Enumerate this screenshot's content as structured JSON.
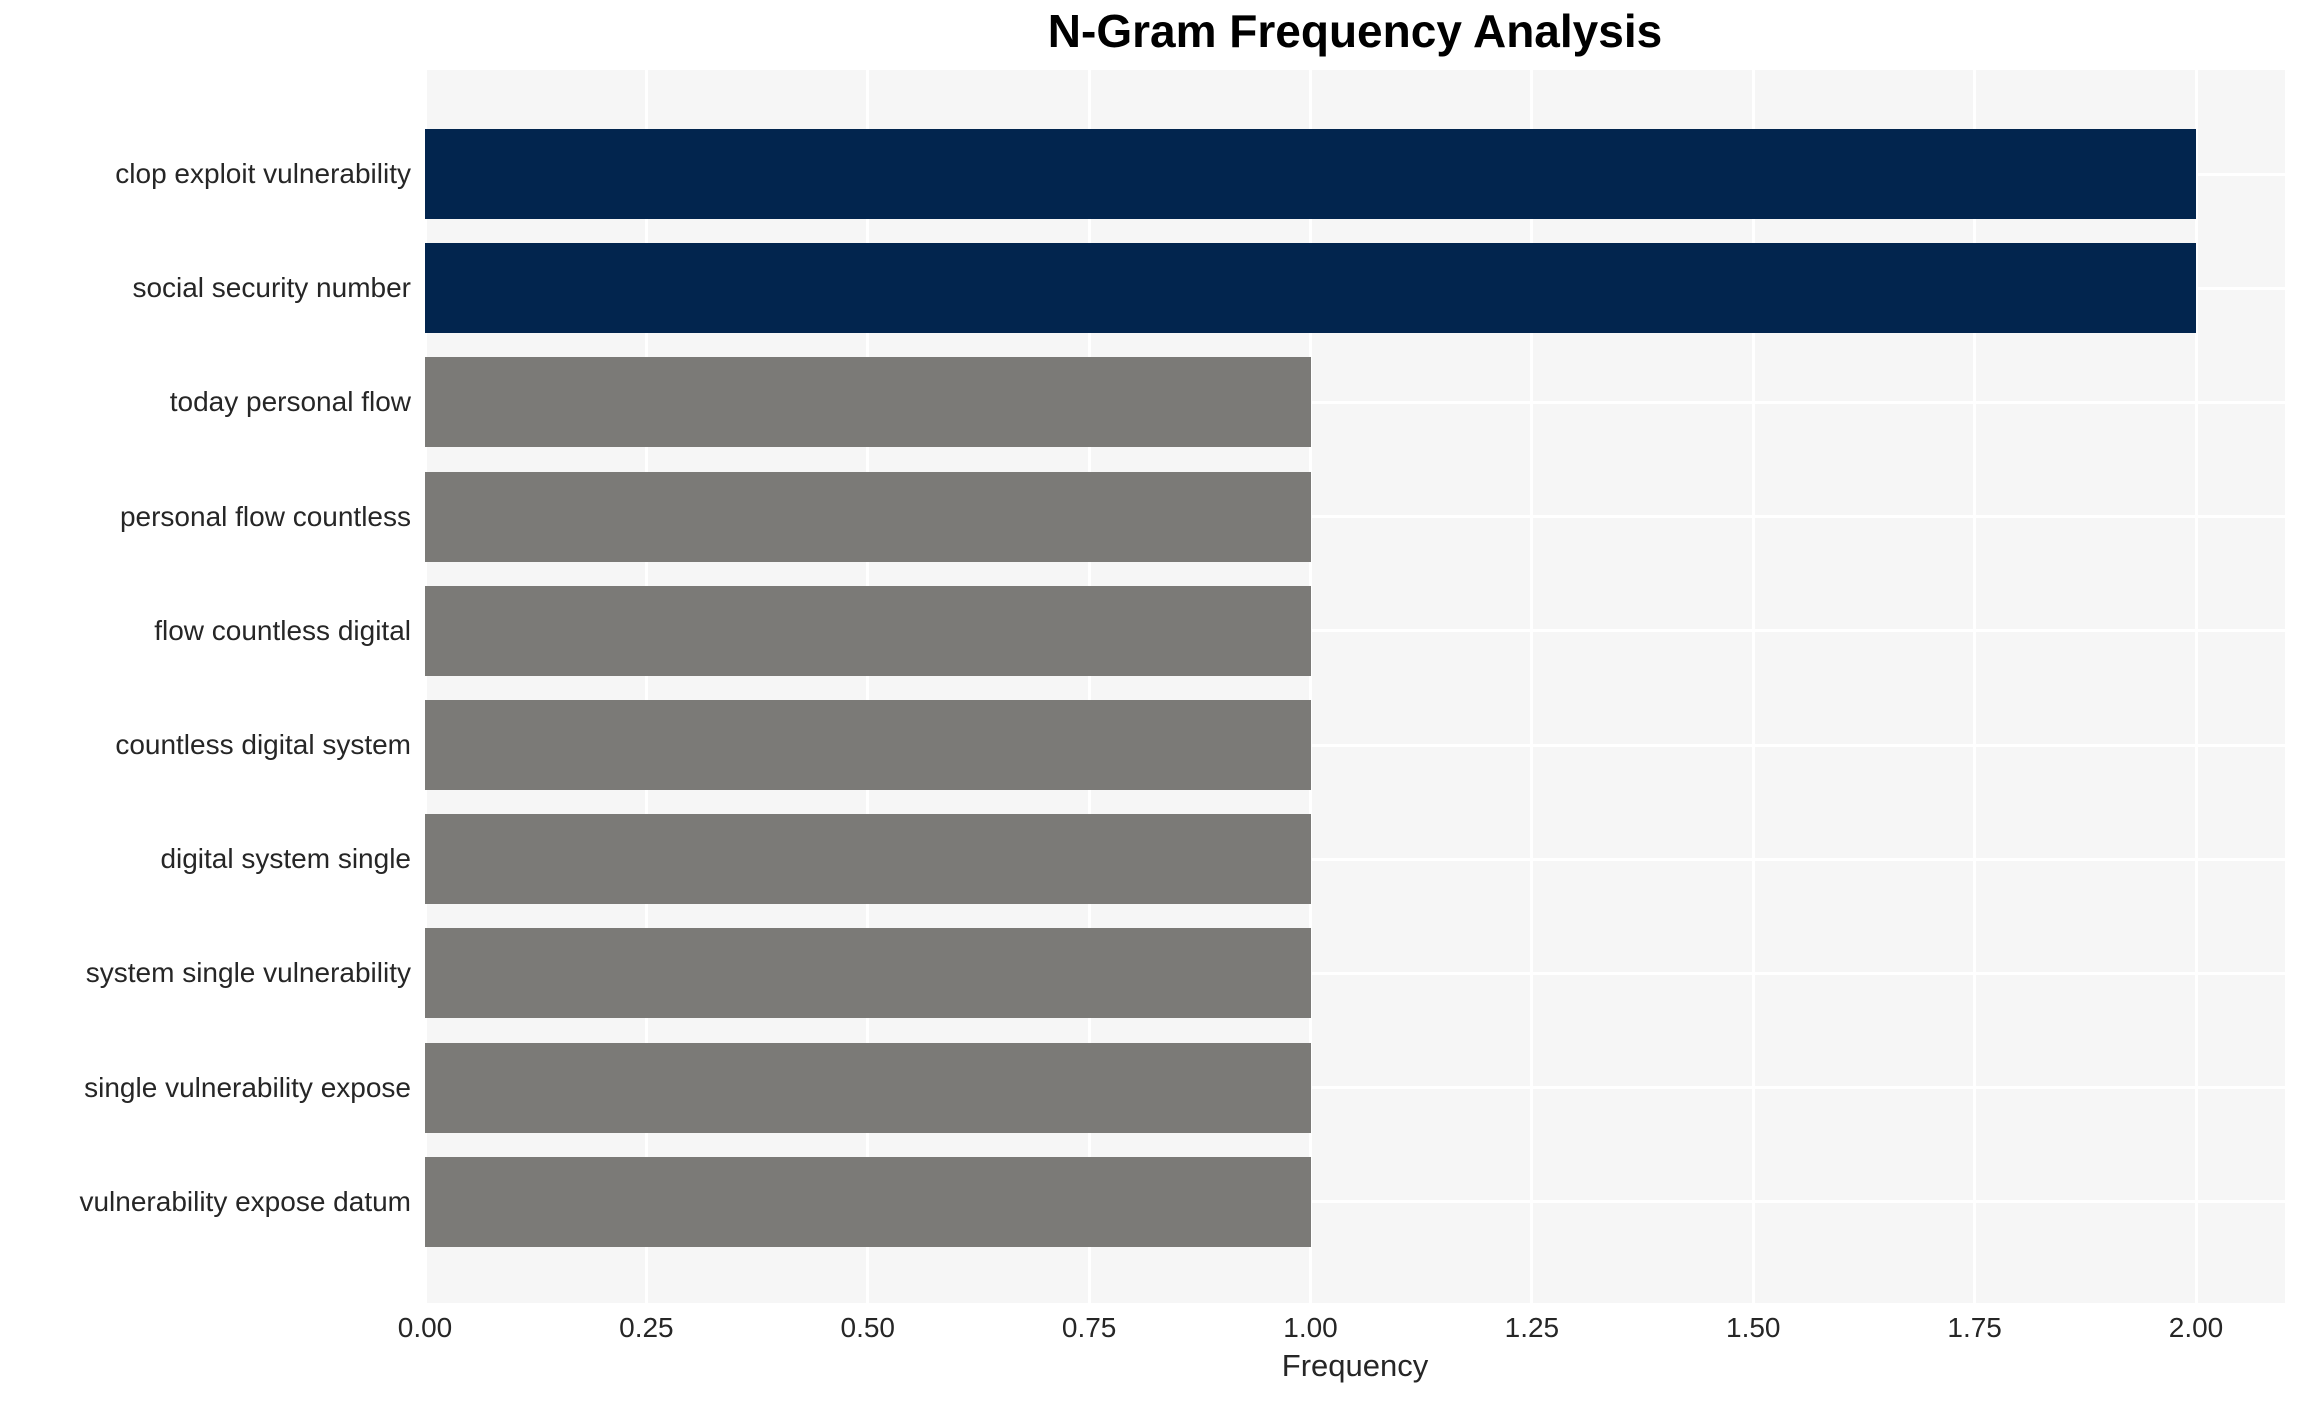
{
  "chart_data": {
    "type": "bar",
    "orientation": "horizontal",
    "title": "N-Gram Frequency Analysis",
    "xlabel": "Frequency",
    "ylabel": "",
    "categories": [
      "clop exploit vulnerability",
      "social security number",
      "today personal flow",
      "personal flow countless",
      "flow countless digital",
      "countless digital system",
      "digital system single",
      "system single vulnerability",
      "single vulnerability expose",
      "vulnerability expose datum"
    ],
    "values": [
      2,
      2,
      1,
      1,
      1,
      1,
      1,
      1,
      1,
      1
    ],
    "bar_colors": [
      "#02254e",
      "#02254e",
      "#7b7a77",
      "#7b7a77",
      "#7b7a77",
      "#7b7a77",
      "#7b7a77",
      "#7b7a77",
      "#7b7a77",
      "#7b7a77"
    ],
    "colors": {
      "highlight": "#02254e",
      "default": "#7b7a77",
      "plot_background": "#f6f6f6",
      "gridline": "#ffffff",
      "text": "#262626",
      "title": "#000000"
    },
    "xlim": [
      0,
      2.1
    ],
    "xticks": [
      "0.00",
      "0.25",
      "0.50",
      "0.75",
      "1.00",
      "1.25",
      "1.50",
      "1.75",
      "2.00"
    ],
    "xtick_values": [
      0,
      0.25,
      0.5,
      0.75,
      1.0,
      1.25,
      1.5,
      1.75,
      2.0
    ],
    "grid": true,
    "legend": false
  }
}
